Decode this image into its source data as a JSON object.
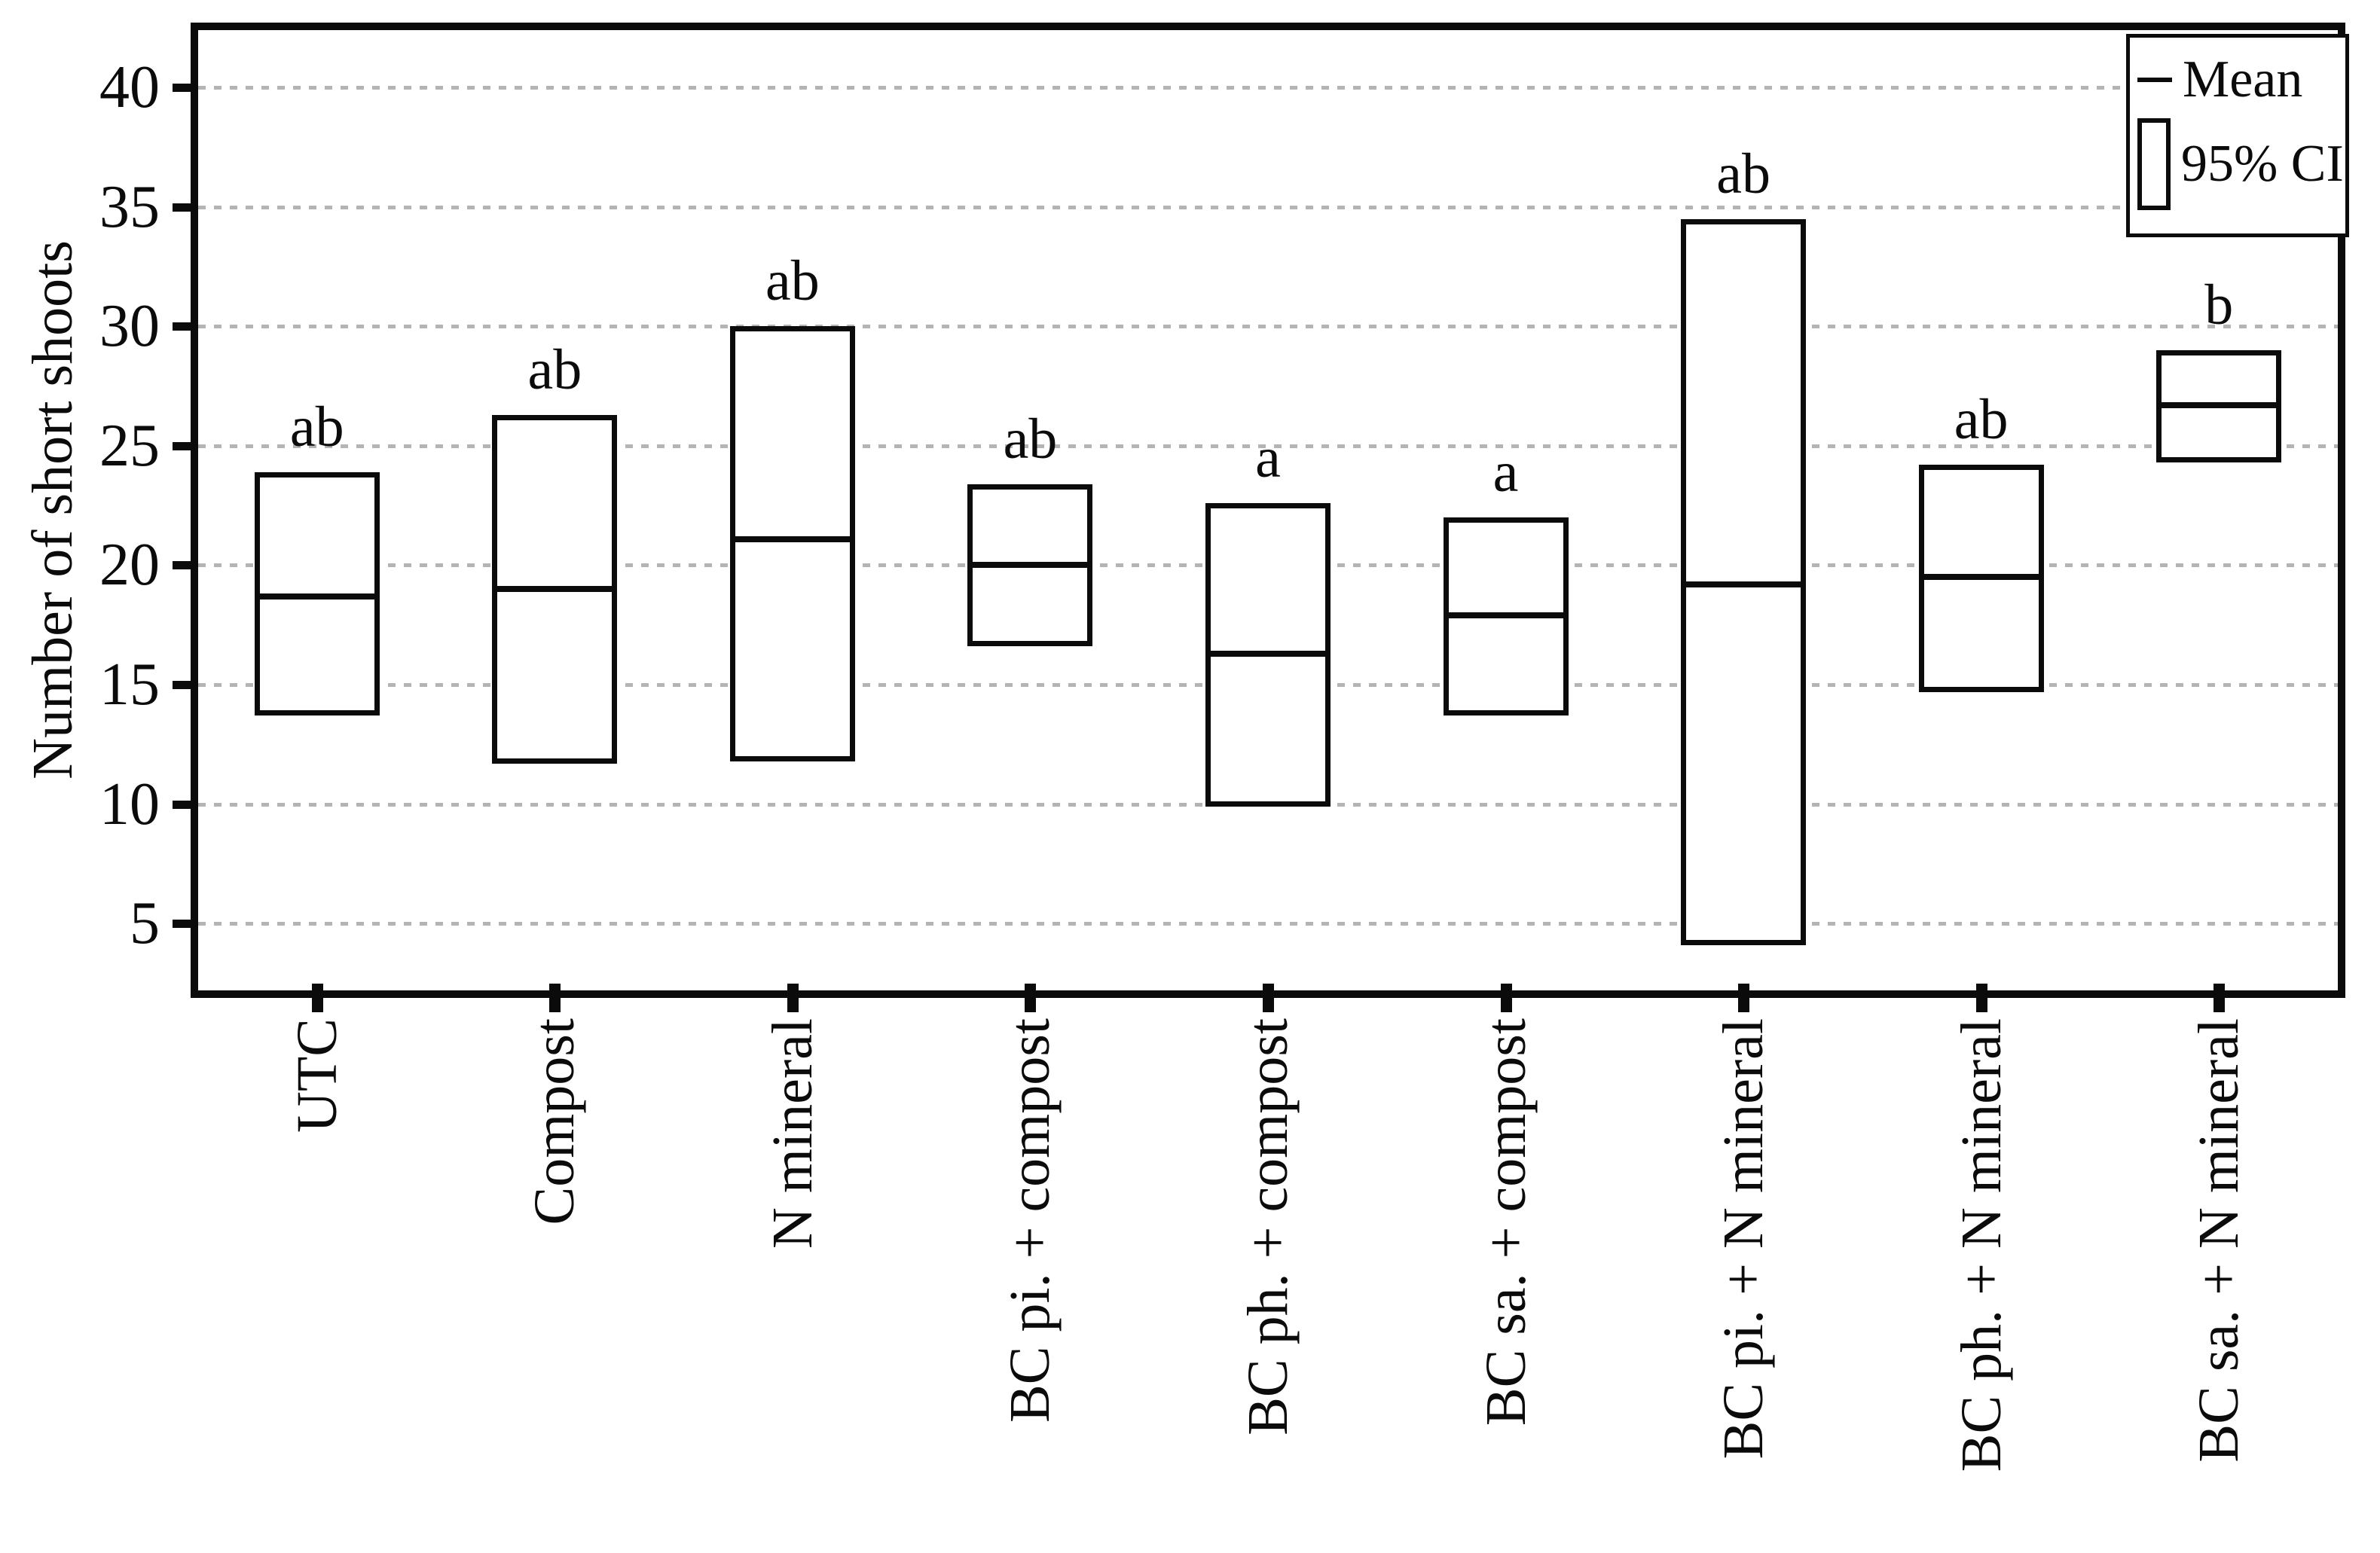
{
  "chart_data": {
    "type": "box",
    "title": "",
    "xlabel": "",
    "ylabel": "Number of short shoots",
    "yticks": [
      40,
      35,
      30,
      25,
      20,
      15,
      10,
      5
    ],
    "ylim": [
      2.2,
      42.4
    ],
    "grid": "horizontal-dotted",
    "legend_position": "top-right",
    "legend": {
      "items": [
        {
          "symbol": "mean-dash",
          "label": "Mean"
        },
        {
          "symbol": "ci-box",
          "label": "95% CI"
        }
      ]
    },
    "categories": [
      "UTC",
      "Compost",
      "N mineral",
      "BC pi. + compost",
      "BC ph. + compost",
      "BC sa. + compost",
      "BC pi. + N mineral",
      "BC ph. + N mineral",
      "BC sa. + N mineral"
    ],
    "boxes": [
      {
        "category": "UTC",
        "ci_low": 13.7,
        "mean": 18.7,
        "ci_high": 23.9,
        "letter": "ab"
      },
      {
        "category": "Compost",
        "ci_low": 11.7,
        "mean": 19.0,
        "ci_high": 26.3,
        "letter": "ab"
      },
      {
        "category": "N mineral",
        "ci_low": 11.8,
        "mean": 21.1,
        "ci_high": 30.0,
        "letter": "ab"
      },
      {
        "category": "BC pi. + compost",
        "ci_low": 16.6,
        "mean": 20.0,
        "ci_high": 23.4,
        "letter": "ab"
      },
      {
        "category": "BC ph. + compost",
        "ci_low": 9.9,
        "mean": 16.3,
        "ci_high": 22.6,
        "letter": "a"
      },
      {
        "category": "BC sa. + compost",
        "ci_low": 13.7,
        "mean": 17.9,
        "ci_high": 22.0,
        "letter": "a"
      },
      {
        "category": "BC pi. + N mineral",
        "ci_low": 4.1,
        "mean": 19.2,
        "ci_high": 34.5,
        "letter": "ab"
      },
      {
        "category": "BC ph. + N mineral",
        "ci_low": 14.7,
        "mean": 19.5,
        "ci_high": 24.2,
        "letter": "ab"
      },
      {
        "category": "BC sa. + N mineral",
        "ci_low": 24.3,
        "mean": 26.7,
        "ci_high": 29.0,
        "letter": "b"
      }
    ],
    "colors": {
      "line": "#0b0b0b",
      "gridline": "#b4b4b4",
      "background": "#ffffff"
    }
  }
}
